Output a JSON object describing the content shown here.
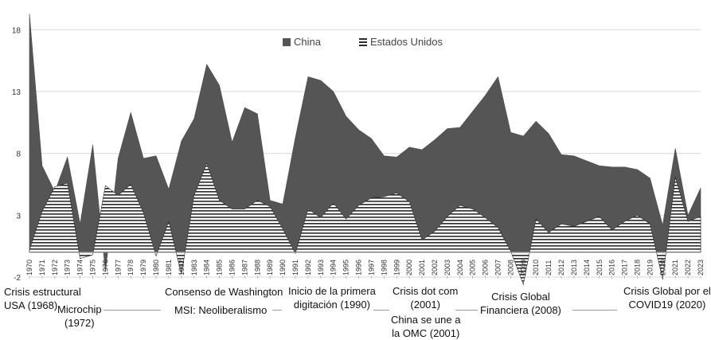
{
  "chart_data": {
    "type": "area",
    "title": "",
    "xlabel": "",
    "ylabel": "",
    "ylim": [
      -2,
      19.5
    ],
    "yticks": [
      -2,
      3,
      8,
      13,
      18
    ],
    "grid": "horizontal",
    "legend_position": "top-center",
    "categories": [
      "1970",
      "1971",
      "1972",
      "1973",
      "1974",
      "1975",
      "1976",
      "1977",
      "1978",
      "1979",
      "1980",
      "1981",
      "1982",
      "1983",
      "1984",
      "1985",
      "1986",
      "1987",
      "1988",
      "1989",
      "1990",
      "1991",
      "1992",
      "1993",
      "1994",
      "1995",
      "1996",
      "1997",
      "1998",
      "1999",
      "2000",
      "2001",
      "2002",
      "2003",
      "2004",
      "2005",
      "2006",
      "2007",
      "2008",
      "2009",
      "2010",
      "2011",
      "2012",
      "2013",
      "2014",
      "2015",
      "2016",
      "2017",
      "2018",
      "2019",
      "2020",
      "2021",
      "2022",
      "2023"
    ],
    "series": [
      {
        "name": "China",
        "color": "#555555",
        "values": [
          19.3,
          7.0,
          4.9,
          7.7,
          2.3,
          8.7,
          -1.6,
          7.6,
          11.3,
          7.6,
          7.8,
          5.1,
          9.0,
          10.8,
          15.2,
          13.5,
          8.9,
          11.7,
          11.2,
          4.2,
          3.9,
          9.3,
          14.2,
          13.9,
          13.0,
          11.0,
          9.9,
          9.2,
          7.8,
          7.7,
          8.5,
          8.3,
          9.1,
          10.0,
          10.1,
          11.4,
          12.7,
          14.2,
          9.7,
          9.4,
          10.6,
          9.6,
          7.9,
          7.8,
          7.4,
          7.0,
          6.9,
          6.9,
          6.7,
          6.0,
          2.2,
          8.4,
          3.0,
          5.2
        ]
      },
      {
        "name": "Estados Unidos",
        "color": "#ffffff",
        "values": [
          0.2,
          3.3,
          5.3,
          5.6,
          -0.5,
          -0.2,
          5.4,
          4.6,
          5.5,
          3.2,
          -0.3,
          2.5,
          -1.8,
          4.6,
          7.2,
          4.2,
          3.5,
          3.5,
          4.2,
          3.7,
          1.9,
          -0.1,
          3.5,
          2.8,
          4.0,
          2.7,
          3.8,
          4.4,
          4.5,
          4.8,
          4.1,
          1.0,
          1.7,
          2.9,
          3.8,
          3.5,
          2.8,
          2.0,
          0.1,
          -2.6,
          2.7,
          1.6,
          2.3,
          2.1,
          2.5,
          2.9,
          1.8,
          2.5,
          3.0,
          2.3,
          -2.2,
          6.1,
          2.5,
          2.9
        ]
      }
    ]
  },
  "legend": [
    {
      "label": "China",
      "color": "#555555"
    },
    {
      "label": "Estados Unidos",
      "color": "#ffffff"
    }
  ],
  "annotations": {
    "crisis_usa": "Crisis estructural\nUSA (1968)",
    "microchip": "Microchip\n(1972)",
    "washington": "Consenso de Washington",
    "msi": "MSI: Neoliberalismo",
    "digitacion": "Inicio de la primera\ndigitación (1990)",
    "dotcom": "Crisis dot com\n(2001)",
    "omc": "China se une a\nla OMC (2001)",
    "financiera": "Crisis Global\nFinanciera (2008)",
    "covid": "Crisis Global por el\nCOVID19 (2020)"
  }
}
